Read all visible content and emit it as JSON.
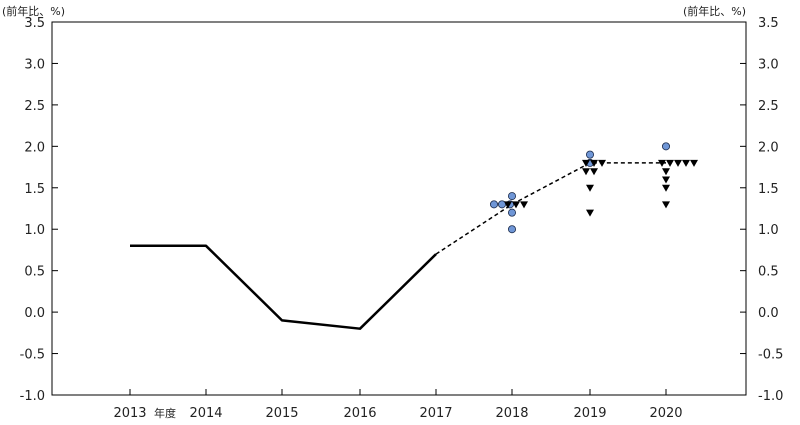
{
  "chart_data": {
    "type": "line",
    "unit_left": "(前年比、%)",
    "unit_right": "(前年比、%)",
    "fiscal_year_label": "年度",
    "ylim": [
      -1.0,
      3.5
    ],
    "yticks": [
      "3.5",
      "3.0",
      "2.5",
      "2.0",
      "1.5",
      "1.0",
      "0.5",
      "0.0",
      "-0.5",
      "-1.0"
    ],
    "ytick_values": [
      3.5,
      3.0,
      2.5,
      2.0,
      1.5,
      1.0,
      0.5,
      0.0,
      -0.5,
      -1.0
    ],
    "x_categories": [
      "2013",
      "2014",
      "2015",
      "2016",
      "2017",
      "2018",
      "2019",
      "2020"
    ],
    "grid": false,
    "legend": "none",
    "series": [
      {
        "style": "solid",
        "color": "#000000",
        "points": [
          [
            2013,
            0.8
          ],
          [
            2014,
            0.8
          ],
          [
            2015,
            -0.1
          ],
          [
            2016,
            -0.2
          ],
          [
            2017,
            0.7
          ]
        ]
      },
      {
        "style": "dashed",
        "color": "#000000",
        "points": [
          [
            2017,
            0.7
          ],
          [
            2018,
            1.3
          ],
          [
            2019,
            1.8
          ],
          [
            2020,
            1.8
          ]
        ]
      }
    ],
    "dots": {
      "marker": "circle",
      "color": "#6f96d6",
      "points": [
        [
          2018,
          1.3
        ],
        [
          2018,
          1.3
        ],
        [
          2018,
          1.3
        ],
        [
          2018,
          1.4
        ],
        [
          2018,
          1.2
        ],
        [
          2018,
          1.0
        ],
        [
          2019,
          1.8
        ],
        [
          2019,
          1.9
        ],
        [
          2020,
          2.0
        ]
      ]
    },
    "triangles": {
      "marker": "triangle-down",
      "color": "#000000",
      "points": [
        [
          2018,
          1.3
        ],
        [
          2018,
          1.3
        ],
        [
          2018,
          1.3
        ],
        [
          2019,
          1.8
        ],
        [
          2019,
          1.8
        ],
        [
          2019,
          1.8
        ],
        [
          2019,
          1.7
        ],
        [
          2019,
          1.7
        ],
        [
          2019,
          1.5
        ],
        [
          2019,
          1.2
        ],
        [
          2020,
          1.8
        ],
        [
          2020,
          1.8
        ],
        [
          2020,
          1.8
        ],
        [
          2020,
          1.8
        ],
        [
          2020,
          1.8
        ],
        [
          2020,
          1.7
        ],
        [
          2020,
          1.6
        ],
        [
          2020,
          1.5
        ],
        [
          2020,
          1.3
        ]
      ]
    }
  }
}
